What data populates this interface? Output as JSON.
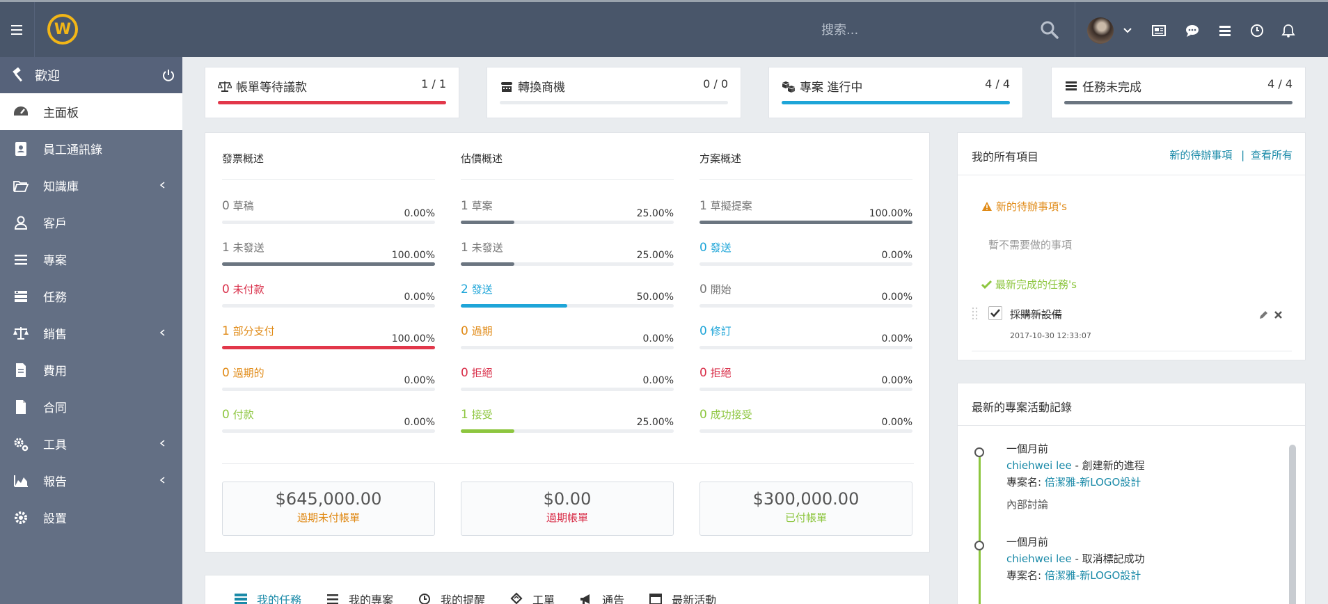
{
  "topbar": {
    "logo_letter": "W",
    "search_placeholder": "搜索..."
  },
  "sidebar": {
    "welcome": "歡迎",
    "items": [
      {
        "label": "主面板",
        "icon": "dashboard-icon",
        "active": true
      },
      {
        "label": "員工通訊錄",
        "icon": "contact-book-icon"
      },
      {
        "label": "知識庫",
        "icon": "folder-open-icon",
        "submenu": true
      },
      {
        "label": "客戶",
        "icon": "user-icon"
      },
      {
        "label": "專案",
        "icon": "bars-icon"
      },
      {
        "label": "任務",
        "icon": "tasks-icon"
      },
      {
        "label": "銷售",
        "icon": "balance-scale-icon",
        "submenu": true
      },
      {
        "label": "費用",
        "icon": "file-text-icon"
      },
      {
        "label": "合同",
        "icon": "file-icon"
      },
      {
        "label": "工具",
        "icon": "cogs-icon",
        "submenu": true
      },
      {
        "label": "報告",
        "icon": "area-chart-icon",
        "submenu": true
      },
      {
        "label": "設置",
        "icon": "gear-icon"
      }
    ]
  },
  "stats": [
    {
      "title": "帳單等待議款",
      "value": "1 / 1",
      "fraction": 1.0,
      "color": "#e2374a",
      "icon": "balance-scale-icon"
    },
    {
      "title": "轉換商機",
      "value": "0 / 0",
      "fraction": 0,
      "color": "#6b7580",
      "icon": "tty-icon"
    },
    {
      "title": "專案 進行中",
      "value": "4 / 4",
      "fraction": 1.0,
      "color": "#1ea5d8",
      "icon": "cubes-icon"
    },
    {
      "title": "任務未完成",
      "value": "4 / 4",
      "fraction": 1.0,
      "color": "#6b7580",
      "icon": "tasks-icon"
    }
  ],
  "overview": {
    "columns": [
      {
        "heading": "發票概述",
        "items": [
          {
            "count": "0",
            "label": "草稿",
            "pct": "0.00%",
            "fraction": 0,
            "color": "#777777",
            "bar": "#6b7580"
          },
          {
            "count": "1",
            "label": "未發送",
            "pct": "100.00%",
            "fraction": 1.0,
            "color": "#777777",
            "bar": "#6b7580"
          },
          {
            "count": "0",
            "label": "未付款",
            "pct": "0.00%",
            "fraction": 0,
            "color": "#d9304a",
            "bar": "#d9304a"
          },
          {
            "count": "1",
            "label": "部分支付",
            "pct": "100.00%",
            "fraction": 1.0,
            "color": "#e08a16",
            "bar": "#e2374a"
          },
          {
            "count": "0",
            "label": "過期的",
            "pct": "0.00%",
            "fraction": 0,
            "color": "#e08a16",
            "bar": "#e08a16"
          },
          {
            "count": "0",
            "label": "付款",
            "pct": "0.00%",
            "fraction": 0,
            "color": "#8dc63f",
            "bar": "#8dc63f"
          }
        ],
        "summary": {
          "amount": "$645,000.00",
          "caption": "過期未付帳單",
          "color": "#e08a16"
        }
      },
      {
        "heading": "估價概述",
        "items": [
          {
            "count": "1",
            "label": "草案",
            "pct": "25.00%",
            "fraction": 0.25,
            "color": "#777777",
            "bar": "#6b7580"
          },
          {
            "count": "1",
            "label": "未發送",
            "pct": "25.00%",
            "fraction": 0.25,
            "color": "#777777",
            "bar": "#6b7580"
          },
          {
            "count": "2",
            "label": "發送",
            "pct": "50.00%",
            "fraction": 0.5,
            "color": "#1ea5d8",
            "bar": "#1ea5d8"
          },
          {
            "count": "0",
            "label": "過期",
            "pct": "0.00%",
            "fraction": 0,
            "color": "#e08a16",
            "bar": "#e08a16"
          },
          {
            "count": "0",
            "label": "拒絕",
            "pct": "0.00%",
            "fraction": 0,
            "color": "#d9304a",
            "bar": "#d9304a"
          },
          {
            "count": "1",
            "label": "接受",
            "pct": "25.00%",
            "fraction": 0.25,
            "color": "#8dc63f",
            "bar": "#8dc63f"
          }
        ],
        "summary": {
          "amount": "$0.00",
          "caption": "過期帳單",
          "color": "#d9304a"
        }
      },
      {
        "heading": "方案概述",
        "items": [
          {
            "count": "1",
            "label": "草擬提案",
            "pct": "100.00%",
            "fraction": 1.0,
            "color": "#777777",
            "bar": "#6b7580"
          },
          {
            "count": "0",
            "label": "發送",
            "pct": "0.00%",
            "fraction": 0,
            "color": "#1ea5d8",
            "bar": "#1ea5d8"
          },
          {
            "count": "0",
            "label": "開始",
            "pct": "0.00%",
            "fraction": 0,
            "color": "#777777",
            "bar": "#6b7580"
          },
          {
            "count": "0",
            "label": "修訂",
            "pct": "0.00%",
            "fraction": 0,
            "color": "#1ea5d8",
            "bar": "#1ea5d8"
          },
          {
            "count": "0",
            "label": "拒絕",
            "pct": "0.00%",
            "fraction": 0,
            "color": "#d9304a",
            "bar": "#d9304a"
          },
          {
            "count": "0",
            "label": "成功接受",
            "pct": "0.00%",
            "fraction": 0,
            "color": "#8dc63f",
            "bar": "#8dc63f"
          }
        ],
        "summary": {
          "amount": "$300,000.00",
          "caption": "已付帳單",
          "color": "#8dc63f"
        }
      }
    ]
  },
  "todos": {
    "title": "我的所有項目",
    "new_link": "新的待辦事項",
    "separator": "|",
    "view_all": "查看所有",
    "new_heading": "新的待辦事項's",
    "empty_text": "暫不需要做的事項",
    "done_heading": "最新完成的任務's",
    "done_item": {
      "text": "採購新設備",
      "date": "2017-10-30 12:33:07"
    }
  },
  "activity": {
    "title": "最新的專案活動記錄",
    "entries": [
      {
        "time": "一個月前",
        "user": "chiehwei lee",
        "action": " - 創建新的進程",
        "project_prefix": "專案名: ",
        "project": "倍潔雅-新LOGO設計",
        "note": "內部討論"
      },
      {
        "time": "一個月前",
        "user": "chiehwei lee",
        "action": " - 取消標記成功",
        "project_prefix": "專案名: ",
        "project": "倍潔雅-新LOGO設計",
        "note": ""
      }
    ]
  },
  "bottom_tabs": [
    {
      "label": "我的任務",
      "icon": "tasks-icon",
      "active": true
    },
    {
      "label": "我的專案",
      "icon": "bars-icon"
    },
    {
      "label": "我的提醒",
      "icon": "clock-icon"
    },
    {
      "label": "工單",
      "icon": "ticket-icon"
    },
    {
      "label": "通告",
      "icon": "bullhorn-icon"
    },
    {
      "label": "最新活動",
      "icon": "window-icon"
    }
  ],
  "colors": {
    "accent": "#1a8aa8",
    "success": "#8dc63f",
    "warning": "#e08a16",
    "danger": "#d9304a"
  }
}
